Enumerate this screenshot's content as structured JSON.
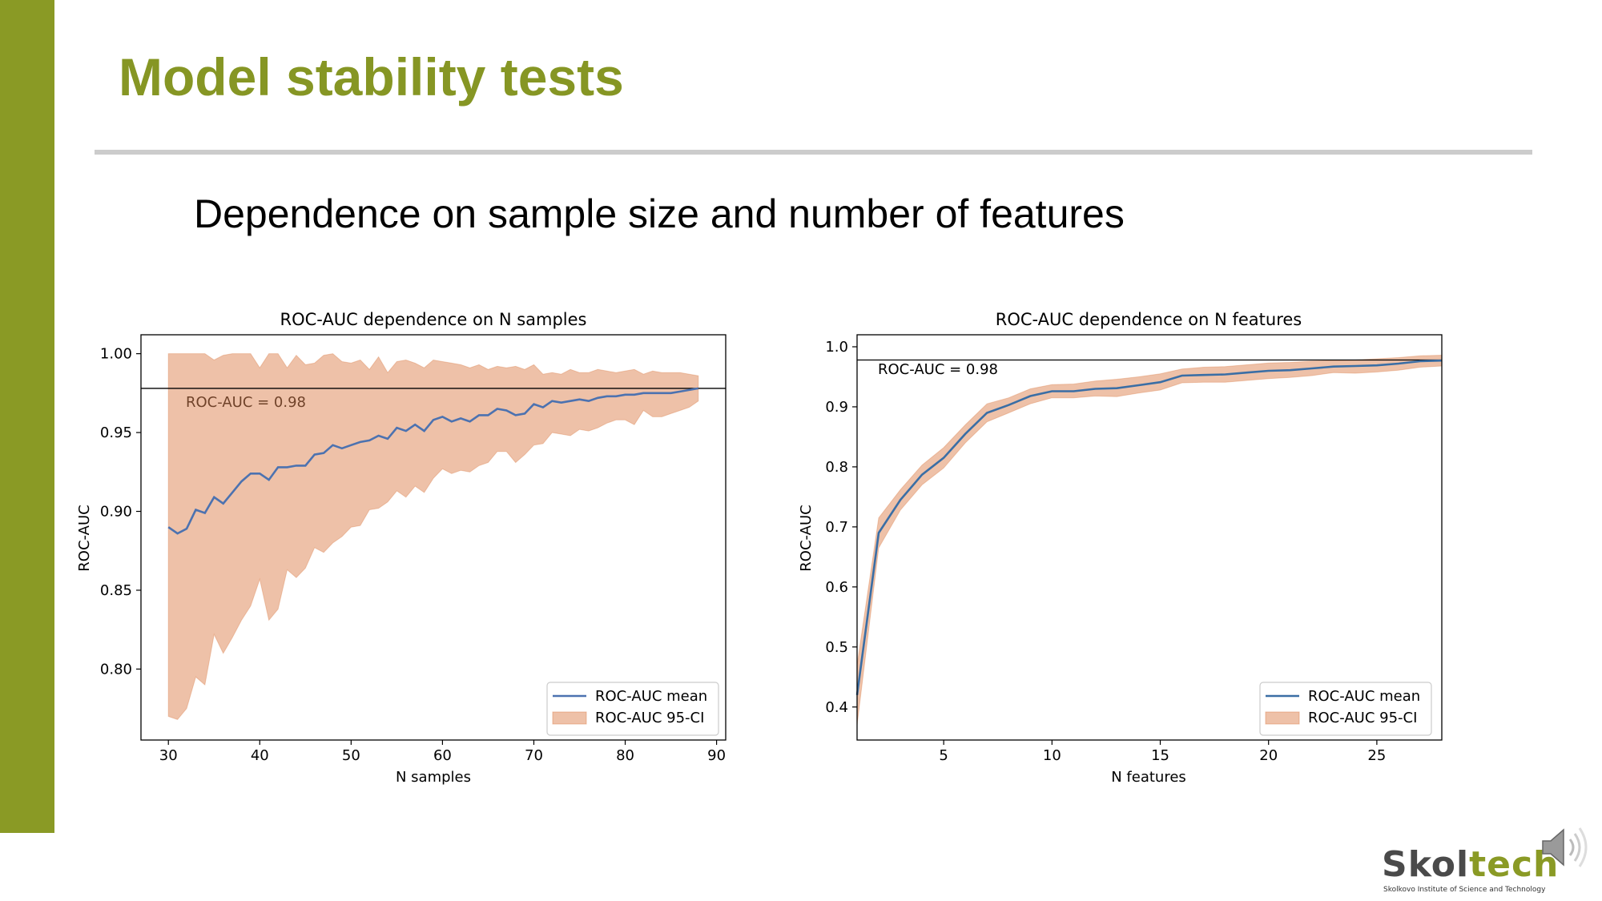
{
  "slide": {
    "title": "Model stability tests",
    "subtitle": "Dependence on sample size and number of features",
    "accent_color": "#8a9a25",
    "title_color": "#869624"
  },
  "logo": {
    "name_main": "Skol",
    "name_accent": "tech",
    "caption": "Skolkovo Institute of Science and Technology"
  },
  "icons": {
    "audio": "speaker-icon"
  },
  "colors": {
    "mean_line": "#4c72b0",
    "ci_band": "#dd8452",
    "ci_alpha": 0.5
  },
  "chart_data": [
    {
      "type": "line",
      "title": "ROC-AUC dependence on N samples",
      "xlabel": "N samples",
      "ylabel": "ROC-AUC",
      "xlim": [
        27,
        91
      ],
      "ylim": [
        0.755,
        1.012
      ],
      "xticks": [
        30,
        40,
        50,
        60,
        70,
        80,
        90
      ],
      "yticks": [
        0.8,
        0.85,
        0.9,
        0.95,
        1.0
      ],
      "ytick_labels": [
        "0.80",
        "0.85",
        "0.90",
        "0.95",
        "1.00"
      ],
      "reference_line": {
        "y": 0.978,
        "label": "ROC-AUC = 0.98"
      },
      "legend": {
        "position": "lower-right",
        "entries": [
          "ROC-AUC mean",
          "ROC-AUC 95-CI"
        ]
      },
      "x": [
        30,
        31,
        32,
        33,
        34,
        35,
        36,
        37,
        38,
        39,
        40,
        41,
        42,
        43,
        44,
        45,
        46,
        47,
        48,
        49,
        50,
        51,
        52,
        53,
        54,
        55,
        56,
        57,
        58,
        59,
        60,
        61,
        62,
        63,
        64,
        65,
        66,
        67,
        68,
        69,
        70,
        71,
        72,
        73,
        74,
        75,
        76,
        77,
        78,
        79,
        80,
        81,
        82,
        83,
        84,
        85,
        86,
        87,
        88
      ],
      "series": [
        {
          "name": "ROC-AUC mean",
          "kind": "line",
          "values": [
            0.89,
            0.886,
            0.889,
            0.901,
            0.899,
            0.909,
            0.905,
            0.912,
            0.919,
            0.924,
            0.924,
            0.92,
            0.928,
            0.928,
            0.929,
            0.929,
            0.936,
            0.937,
            0.942,
            0.94,
            0.942,
            0.944,
            0.945,
            0.948,
            0.946,
            0.953,
            0.951,
            0.955,
            0.951,
            0.958,
            0.96,
            0.957,
            0.959,
            0.957,
            0.961,
            0.961,
            0.965,
            0.964,
            0.961,
            0.962,
            0.968,
            0.966,
            0.97,
            0.969,
            0.97,
            0.971,
            0.97,
            0.972,
            0.973,
            0.973,
            0.974,
            0.974,
            0.975,
            0.975,
            0.975,
            0.975,
            0.976,
            0.977,
            0.978
          ]
        },
        {
          "name": "ROC-AUC 95-CI",
          "kind": "band",
          "lower": [
            0.77,
            0.768,
            0.775,
            0.795,
            0.79,
            0.822,
            0.81,
            0.82,
            0.831,
            0.84,
            0.857,
            0.831,
            0.838,
            0.863,
            0.858,
            0.864,
            0.877,
            0.874,
            0.88,
            0.884,
            0.89,
            0.891,
            0.901,
            0.902,
            0.906,
            0.913,
            0.909,
            0.916,
            0.912,
            0.921,
            0.927,
            0.924,
            0.926,
            0.925,
            0.929,
            0.931,
            0.938,
            0.938,
            0.931,
            0.936,
            0.942,
            0.943,
            0.95,
            0.949,
            0.948,
            0.952,
            0.951,
            0.953,
            0.956,
            0.958,
            0.958,
            0.955,
            0.964,
            0.96,
            0.96,
            0.962,
            0.964,
            0.966,
            0.97
          ],
          "upper": [
            1.0,
            1.0,
            1.0,
            1.0,
            1.0,
            0.996,
            0.999,
            1.0,
            1.0,
            1.0,
            0.991,
            1.0,
            1.0,
            0.991,
            0.999,
            0.993,
            0.994,
            0.999,
            1.0,
            0.995,
            0.994,
            0.996,
            0.99,
            0.998,
            0.988,
            0.995,
            0.996,
            0.994,
            0.991,
            0.996,
            0.995,
            0.994,
            0.993,
            0.991,
            0.993,
            0.99,
            0.992,
            0.991,
            0.992,
            0.99,
            0.993,
            0.987,
            0.988,
            0.987,
            0.99,
            0.988,
            0.988,
            0.99,
            0.989,
            0.988,
            0.989,
            0.99,
            0.987,
            0.989,
            0.988,
            0.988,
            0.988,
            0.987,
            0.986
          ]
        }
      ]
    },
    {
      "type": "line",
      "title": "ROC-AUC dependence on N features",
      "xlabel": "N features",
      "ylabel": "ROC-AUC",
      "xlim": [
        1,
        28
      ],
      "ylim": [
        0.345,
        1.02
      ],
      "xticks": [
        5,
        10,
        15,
        20,
        25
      ],
      "yticks": [
        0.4,
        0.5,
        0.6,
        0.7,
        0.8,
        0.9,
        1.0
      ],
      "ytick_labels": [
        "0.4",
        "0.5",
        "0.6",
        "0.7",
        "0.8",
        "0.9",
        "1.0"
      ],
      "reference_line": {
        "y": 0.978,
        "label": "ROC-AUC = 0.98"
      },
      "legend": {
        "position": "lower-right",
        "entries": [
          "ROC-AUC mean",
          "ROC-AUC 95-CI"
        ]
      },
      "x": [
        1,
        2,
        3,
        4,
        5,
        6,
        7,
        8,
        9,
        10,
        11,
        12,
        13,
        14,
        15,
        16,
        17,
        18,
        19,
        20,
        21,
        22,
        23,
        24,
        25,
        26,
        27,
        28
      ],
      "series": [
        {
          "name": "ROC-AUC mean",
          "kind": "line",
          "values": [
            0.42,
            0.69,
            0.745,
            0.787,
            0.815,
            0.855,
            0.89,
            0.903,
            0.918,
            0.926,
            0.926,
            0.93,
            0.931,
            0.936,
            0.941,
            0.952,
            0.953,
            0.954,
            0.957,
            0.96,
            0.961,
            0.964,
            0.967,
            0.968,
            0.969,
            0.972,
            0.976,
            0.977
          ]
        },
        {
          "name": "ROC-AUC 95-CI",
          "kind": "band",
          "lower": [
            0.37,
            0.665,
            0.728,
            0.77,
            0.798,
            0.84,
            0.875,
            0.89,
            0.905,
            0.915,
            0.915,
            0.918,
            0.917,
            0.923,
            0.928,
            0.94,
            0.941,
            0.941,
            0.944,
            0.947,
            0.949,
            0.952,
            0.957,
            0.956,
            0.958,
            0.961,
            0.966,
            0.968
          ],
          "upper": [
            0.47,
            0.715,
            0.762,
            0.803,
            0.832,
            0.87,
            0.905,
            0.915,
            0.93,
            0.937,
            0.938,
            0.943,
            0.946,
            0.95,
            0.955,
            0.963,
            0.966,
            0.967,
            0.97,
            0.973,
            0.974,
            0.976,
            0.977,
            0.978,
            0.98,
            0.982,
            0.985,
            0.986
          ]
        }
      ]
    }
  ]
}
